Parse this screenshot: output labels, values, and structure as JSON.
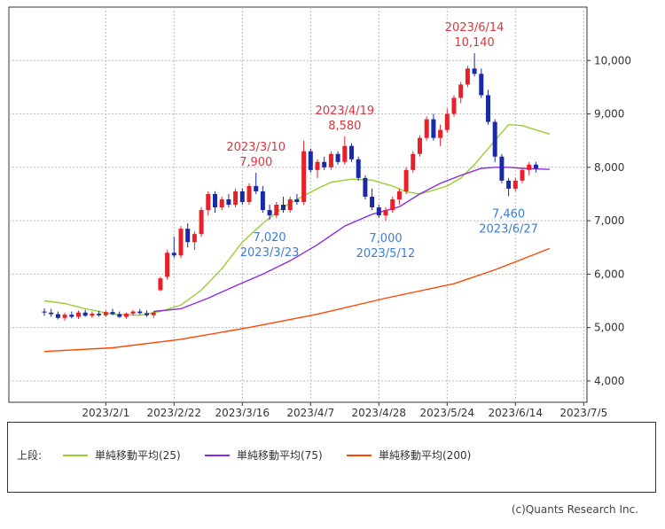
{
  "chart_data": {
    "type": "candlestick",
    "ylim": [
      3600,
      11000
    ],
    "y_ticks": [
      4000,
      5000,
      6000,
      7000,
      8000,
      9000,
      10000
    ],
    "y_tick_labels": [
      "4,000",
      "5,000",
      "6,000",
      "7,000",
      "8,000",
      "9,000",
      "10,000"
    ],
    "x_tick_labels": [
      "2023/2/1",
      "2023/2/22",
      "2023/3/16",
      "2023/4/7",
      "2023/4/28",
      "2023/5/24",
      "2023/6/14",
      "2023/7/5"
    ],
    "grid": true,
    "colors": {
      "up": "#e8202a",
      "down": "#1a2aa6",
      "ma25": "#9acd32",
      "ma75": "#8a2be2",
      "ma200": "#ff4500",
      "high_label": "#d9363e",
      "low_label": "#3b7dd8",
      "grid": "#bbbbbb"
    },
    "ma_series": [
      {
        "name": "単純移動平均(25)",
        "key": "ma25",
        "points": [
          [
            0,
            5500
          ],
          [
            3,
            5450
          ],
          [
            6,
            5350
          ],
          [
            10,
            5250
          ],
          [
            14,
            5230
          ],
          [
            17,
            5300
          ],
          [
            20,
            5420
          ],
          [
            23,
            5700
          ],
          [
            26,
            6100
          ],
          [
            29,
            6600
          ],
          [
            32,
            6950
          ],
          [
            35,
            7250
          ],
          [
            37,
            7400
          ],
          [
            40,
            7600
          ],
          [
            42,
            7720
          ],
          [
            45,
            7780
          ],
          [
            48,
            7760
          ],
          [
            51,
            7650
          ],
          [
            53,
            7540
          ],
          [
            55,
            7500
          ],
          [
            57,
            7570
          ],
          [
            59,
            7650
          ],
          [
            61,
            7800
          ],
          [
            63,
            8050
          ],
          [
            65,
            8350
          ],
          [
            67,
            8650
          ],
          [
            68,
            8800
          ],
          [
            70,
            8780
          ],
          [
            72,
            8700
          ],
          [
            74,
            8620
          ]
        ]
      },
      {
        "name": "単純移動平均(75)",
        "key": "ma75",
        "points": [
          [
            16,
            5300
          ],
          [
            20,
            5350
          ],
          [
            24,
            5550
          ],
          [
            28,
            5780
          ],
          [
            32,
            6000
          ],
          [
            36,
            6250
          ],
          [
            40,
            6550
          ],
          [
            44,
            6900
          ],
          [
            48,
            7120
          ],
          [
            52,
            7260
          ],
          [
            55,
            7500
          ],
          [
            58,
            7700
          ],
          [
            61,
            7850
          ],
          [
            64,
            7980
          ],
          [
            66,
            8000
          ],
          [
            68,
            8000
          ],
          [
            70,
            7980
          ],
          [
            72,
            7970
          ],
          [
            74,
            7960
          ]
        ]
      },
      {
        "name": "単純移動平均(200)",
        "key": "ma200",
        "points": [
          [
            0,
            4550
          ],
          [
            10,
            4620
          ],
          [
            20,
            4780
          ],
          [
            30,
            5000
          ],
          [
            40,
            5250
          ],
          [
            50,
            5550
          ],
          [
            60,
            5820
          ],
          [
            66,
            6080
          ],
          [
            70,
            6280
          ],
          [
            74,
            6480
          ]
        ]
      }
    ],
    "candles": [
      [
        5300,
        5360,
        5220,
        5280
      ],
      [
        5280,
        5350,
        5200,
        5250
      ],
      [
        5250,
        5300,
        5150,
        5180
      ],
      [
        5180,
        5280,
        5130,
        5240
      ],
      [
        5240,
        5300,
        5170,
        5200
      ],
      [
        5200,
        5320,
        5160,
        5280
      ],
      [
        5280,
        5330,
        5200,
        5220
      ],
      [
        5220,
        5300,
        5180,
        5260
      ],
      [
        5260,
        5310,
        5200,
        5230
      ],
      [
        5230,
        5320,
        5200,
        5290
      ],
      [
        5290,
        5350,
        5230,
        5250
      ],
      [
        5250,
        5300,
        5180,
        5200
      ],
      [
        5200,
        5280,
        5160,
        5260
      ],
      [
        5260,
        5330,
        5220,
        5300
      ],
      [
        5300,
        5350,
        5240,
        5270
      ],
      [
        5270,
        5320,
        5200,
        5230
      ],
      [
        5230,
        5300,
        5180,
        5280
      ],
      [
        5700,
        5950,
        5680,
        5920
      ],
      [
        5950,
        6450,
        5900,
        6400
      ],
      [
        6400,
        6700,
        6300,
        6350
      ],
      [
        6350,
        6900,
        6300,
        6850
      ],
      [
        6850,
        6950,
        6500,
        6600
      ],
      [
        6600,
        6800,
        6450,
        6750
      ],
      [
        6750,
        7250,
        6700,
        7200
      ],
      [
        7200,
        7550,
        7100,
        7500
      ],
      [
        7500,
        7550,
        7150,
        7250
      ],
      [
        7250,
        7450,
        7200,
        7400
      ],
      [
        7400,
        7500,
        7250,
        7300
      ],
      [
        7300,
        7600,
        7250,
        7550
      ],
      [
        7550,
        7600,
        7300,
        7350
      ],
      [
        7350,
        7700,
        7300,
        7650
      ],
      [
        7650,
        7900,
        7500,
        7550
      ],
      [
        7550,
        7650,
        7150,
        7200
      ],
      [
        7200,
        7300,
        7020,
        7100
      ],
      [
        7100,
        7350,
        7050,
        7300
      ],
      [
        7300,
        7450,
        7150,
        7200
      ],
      [
        7200,
        7450,
        7150,
        7400
      ],
      [
        7400,
        7500,
        7300,
        7350
      ],
      [
        7350,
        8500,
        7300,
        8300
      ],
      [
        8300,
        8350,
        7900,
        7950
      ],
      [
        7950,
        8150,
        7800,
        8100
      ],
      [
        8100,
        8200,
        7950,
        8000
      ],
      [
        8000,
        8300,
        7950,
        8250
      ],
      [
        8250,
        8300,
        8050,
        8100
      ],
      [
        8100,
        8580,
        8050,
        8400
      ],
      [
        8400,
        8450,
        8100,
        8150
      ],
      [
        8150,
        8200,
        7750,
        7800
      ],
      [
        7800,
        7850,
        7400,
        7450
      ],
      [
        7450,
        7600,
        7200,
        7250
      ],
      [
        7250,
        7300,
        7050,
        7100
      ],
      [
        7100,
        7250,
        7000,
        7200
      ],
      [
        7200,
        7450,
        7150,
        7400
      ],
      [
        7400,
        7600,
        7300,
        7550
      ],
      [
        7550,
        8000,
        7500,
        7950
      ],
      [
        7950,
        8300,
        7900,
        8250
      ],
      [
        8250,
        8600,
        8200,
        8550
      ],
      [
        8550,
        8950,
        8500,
        8900
      ],
      [
        8900,
        9000,
        8500,
        8550
      ],
      [
        8550,
        8800,
        8400,
        8700
      ],
      [
        8700,
        9100,
        8650,
        9000
      ],
      [
        9000,
        9350,
        8950,
        9300
      ],
      [
        9300,
        9600,
        9200,
        9550
      ],
      [
        9550,
        9900,
        9500,
        9850
      ],
      [
        9850,
        10140,
        9700,
        9750
      ],
      [
        9750,
        9850,
        9300,
        9350
      ],
      [
        9350,
        9450,
        8800,
        8850
      ],
      [
        8850,
        8900,
        8100,
        8200
      ],
      [
        8200,
        8250,
        7700,
        7750
      ],
      [
        7750,
        7800,
        7460,
        7600
      ],
      [
        7600,
        7800,
        7550,
        7750
      ],
      [
        7750,
        8000,
        7700,
        7950
      ],
      [
        7950,
        8100,
        7850,
        8050
      ],
      [
        8050,
        8100,
        7900,
        7980
      ]
    ],
    "annotations": [
      {
        "kind": "high",
        "i": 63,
        "value": 10140,
        "date": "2023/6/14",
        "value_label": "10,140"
      },
      {
        "kind": "high",
        "i": 44,
        "value": 8580,
        "date": "2023/4/19",
        "value_label": "8,580"
      },
      {
        "kind": "high",
        "i": 31,
        "value": 7900,
        "date": "2023/3/10",
        "value_label": "7,900"
      },
      {
        "kind": "low",
        "i": 33,
        "value": 7020,
        "date": "2023/3/23",
        "value_label": "7,020"
      },
      {
        "kind": "low",
        "i": 50,
        "value": 7000,
        "date": "2023/5/12",
        "value_label": "7,000"
      },
      {
        "kind": "low",
        "i": 68,
        "value": 7460,
        "date": "2023/6/27",
        "value_label": "7,460"
      }
    ]
  },
  "legend": {
    "prefix": "上段:",
    "items": [
      {
        "label": "単純移動平均(25)",
        "color": "#9acd32"
      },
      {
        "label": "単純移動平均(75)",
        "color": "#8a2be2"
      },
      {
        "label": "単純移動平均(200)",
        "color": "#ff4500"
      }
    ]
  },
  "footer": "(c)Quants Research Inc."
}
